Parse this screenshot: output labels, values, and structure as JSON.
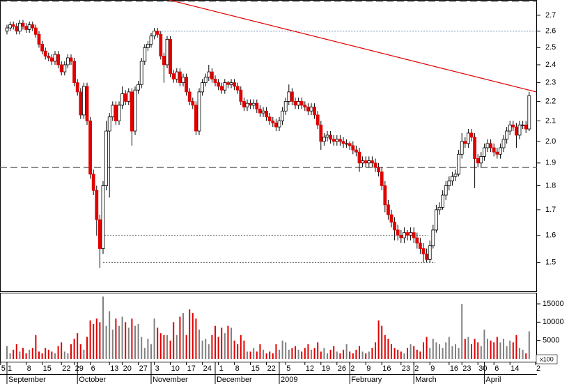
{
  "chart_data": {
    "type": "candlestick",
    "log_y": true,
    "xlim": [
      -2.17,
      165.43
    ],
    "ylim": [
      1.4,
      2.8
    ],
    "yticks": [
      1.5,
      1.6,
      1.7,
      1.8,
      1.9,
      {
        "value": 2,
        "label": "2.0"
      },
      2.1,
      2.2,
      2.3,
      2.4,
      2.5,
      2.6,
      2.7
    ],
    "volume_ylim": [
      -950,
      17850
    ],
    "volume_ticks": [
      5000,
      10000,
      15000
    ],
    "volume_multiplier_label": "x100",
    "up_color": "#ffffff",
    "down_color": "#e00000",
    "edge_color": "#000000",
    "volume_up_color": "#808080",
    "volume_down_color": "#e00000",
    "xticks": [
      {
        "value": -2,
        "label": "5"
      },
      {
        "value": 0,
        "label": "1"
      },
      {
        "value": 6,
        "label": "8"
      },
      {
        "value": 11,
        "label": "15"
      },
      {
        "value": 17,
        "label": "22"
      },
      {
        "value": 21,
        "label": "29"
      },
      {
        "value": 26,
        "label": "6"
      },
      {
        "value": 32,
        "label": "13"
      },
      {
        "value": 36,
        "label": "20"
      },
      {
        "value": 41,
        "label": "27"
      },
      {
        "value": 46,
        "label": "3"
      },
      {
        "value": 51,
        "label": "10"
      },
      {
        "value": 56,
        "label": "17"
      },
      {
        "value": 61,
        "label": "24"
      },
      {
        "value": 66,
        "label": "1"
      },
      {
        "value": 71,
        "label": "8"
      },
      {
        "value": 76,
        "label": "15"
      },
      {
        "value": 81,
        "label": "22"
      },
      {
        "value": 87,
        "label": "5"
      },
      {
        "value": 93,
        "label": "12"
      },
      {
        "value": 98,
        "label": "19"
      },
      {
        "value": 103,
        "label": "26"
      },
      {
        "value": 107,
        "label": "2"
      },
      {
        "value": 112,
        "label": "9"
      },
      {
        "value": 117,
        "label": "16"
      },
      {
        "value": 123,
        "label": "23"
      },
      {
        "value": 127,
        "label": "2"
      },
      {
        "value": 132,
        "label": "9"
      },
      {
        "value": 138,
        "label": "16"
      },
      {
        "value": 142,
        "label": "23"
      },
      {
        "value": 147,
        "label": "30"
      },
      {
        "value": 152,
        "label": "6"
      },
      {
        "value": 157,
        "label": "14"
      },
      {
        "value": 165,
        "label": "2"
      }
    ],
    "months": [
      {
        "value": 0,
        "label": "September"
      },
      {
        "value": 22,
        "label": "October"
      },
      {
        "value": 45,
        "label": "November"
      },
      {
        "value": 65,
        "label": "December"
      },
      {
        "value": 85,
        "label": "2009"
      },
      {
        "value": 107,
        "label": "February"
      },
      {
        "value": 127,
        "label": "March"
      },
      {
        "value": 149,
        "label": "April"
      }
    ],
    "open": [
      2.6,
      2.62,
      2.64,
      2.63,
      2.6,
      2.65,
      2.63,
      2.61,
      2.64,
      2.62,
      2.58,
      2.52,
      2.48,
      2.45,
      2.44,
      2.42,
      2.46,
      2.4,
      2.36,
      2.4,
      2.44,
      2.42,
      2.3,
      2.25,
      2.13,
      2.28,
      2.1,
      1.85,
      1.78,
      1.66,
      1.55,
      1.8,
      2.05,
      2.12,
      2.18,
      2.1,
      2.18,
      2.24,
      2.2,
      2.25,
      2.05,
      2.26,
      2.29,
      2.42,
      2.5,
      2.52,
      2.57,
      2.6,
      2.58,
      2.45,
      2.4,
      2.55,
      2.35,
      2.32,
      2.36,
      2.3,
      2.33,
      2.25,
      2.2,
      2.18,
      2.05,
      2.25,
      2.3,
      2.33,
      2.36,
      2.32,
      2.3,
      2.28,
      2.26,
      2.3,
      2.29,
      2.3,
      2.28,
      2.26,
      2.2,
      2.17,
      2.19,
      2.18,
      2.19,
      2.16,
      2.14,
      2.15,
      2.12,
      2.1,
      2.09,
      2.07,
      2.1,
      2.15,
      2.2,
      2.25,
      2.2,
      2.18,
      2.2,
      2.18,
      2.17,
      2.15,
      2.17,
      2.13,
      2.08,
      2.0,
      2.02,
      2.03,
      2.01,
      2.0,
      2.01,
      2.0,
      1.99,
      1.99,
      1.98,
      1.96,
      1.95,
      1.9,
      1.91,
      1.9,
      1.91,
      1.9,
      1.88,
      1.86,
      1.8,
      1.72,
      1.68,
      1.65,
      1.62,
      1.6,
      1.59,
      1.61,
      1.6,
      1.61,
      1.59,
      1.57,
      1.55,
      1.53,
      1.51,
      1.56,
      1.62,
      1.7,
      1.71,
      1.76,
      1.8,
      1.82,
      1.84,
      1.85,
      1.94,
      2.0,
      1.99,
      2.04,
      2.02,
      1.92,
      1.9,
      1.93,
      1.97,
      1.99,
      1.97,
      1.95,
      1.94,
      1.97,
      2.01,
      2.05,
      2.08,
      2.07,
      2.03,
      2.08,
      2.08,
      2.06
    ],
    "high": [
      2.64,
      2.66,
      2.66,
      2.65,
      2.67,
      2.67,
      2.65,
      2.66,
      2.66,
      2.64,
      2.6,
      2.54,
      2.5,
      2.47,
      2.46,
      2.48,
      2.48,
      2.42,
      2.42,
      2.46,
      2.46,
      2.44,
      2.32,
      2.27,
      2.3,
      2.3,
      2.12,
      1.87,
      1.8,
      1.68,
      1.82,
      2.1,
      2.14,
      2.2,
      2.2,
      2.2,
      2.28,
      2.26,
      2.27,
      2.27,
      2.28,
      2.31,
      2.44,
      2.52,
      2.54,
      2.59,
      2.62,
      2.62,
      2.6,
      2.47,
      2.57,
      2.57,
      2.37,
      2.38,
      2.38,
      2.35,
      2.35,
      2.27,
      2.22,
      2.2,
      2.27,
      2.32,
      2.35,
      2.4,
      2.38,
      2.34,
      2.32,
      2.3,
      2.32,
      2.31,
      2.32,
      2.32,
      2.3,
      2.28,
      2.22,
      2.21,
      2.21,
      2.21,
      2.21,
      2.18,
      2.17,
      2.17,
      2.14,
      2.12,
      2.11,
      2.12,
      2.17,
      2.22,
      2.29,
      2.27,
      2.22,
      2.22,
      2.22,
      2.2,
      2.19,
      2.19,
      2.19,
      2.15,
      2.1,
      2.04,
      2.05,
      2.05,
      2.03,
      2.03,
      2.03,
      2.02,
      2.01,
      2.0,
      2.0,
      1.98,
      1.97,
      1.93,
      1.93,
      1.93,
      1.93,
      1.92,
      1.9,
      1.88,
      1.82,
      1.74,
      1.7,
      1.67,
      1.64,
      1.62,
      1.63,
      1.62,
      1.63,
      1.63,
      1.61,
      1.59,
      1.57,
      1.55,
      1.58,
      1.64,
      1.72,
      1.73,
      1.78,
      1.82,
      1.84,
      1.86,
      1.87,
      1.96,
      2.04,
      2.02,
      2.06,
      2.06,
      2.04,
      1.94,
      1.95,
      1.99,
      2.01,
      2.01,
      1.99,
      1.97,
      1.99,
      2.03,
      2.07,
      2.1,
      2.1,
      2.09,
      2.1,
      2.1,
      2.1,
      2.25
    ],
    "low": [
      2.58,
      2.6,
      2.61,
      2.58,
      2.58,
      2.61,
      2.59,
      2.59,
      2.6,
      2.56,
      2.5,
      2.46,
      2.43,
      2.42,
      2.4,
      2.4,
      2.38,
      2.34,
      2.34,
      2.38,
      2.4,
      2.28,
      2.23,
      2.11,
      2.11,
      2.08,
      1.83,
      1.76,
      1.6,
      1.48,
      1.53,
      1.78,
      1.75,
      2.1,
      2.08,
      2.08,
      2.16,
      2.18,
      2.18,
      1.98,
      2.03,
      2.24,
      2.27,
      2.4,
      2.48,
      2.5,
      2.55,
      2.56,
      2.43,
      2.3,
      2.38,
      2.33,
      2.3,
      2.3,
      2.28,
      2.28,
      2.23,
      2.18,
      2.16,
      2.03,
      2.03,
      2.23,
      2.28,
      2.31,
      2.3,
      2.28,
      2.26,
      2.24,
      2.24,
      2.27,
      2.27,
      2.26,
      2.24,
      2.18,
      2.15,
      2.15,
      2.16,
      2.16,
      2.14,
      2.12,
      2.12,
      2.1,
      2.08,
      2.07,
      2.05,
      2.05,
      2.08,
      2.13,
      2.18,
      2.18,
      2.16,
      2.16,
      2.16,
      2.15,
      2.13,
      2.13,
      2.11,
      2.06,
      1.96,
      1.98,
      2.0,
      1.99,
      1.98,
      1.98,
      1.98,
      1.97,
      1.97,
      1.96,
      1.94,
      1.93,
      1.86,
      1.88,
      1.88,
      1.88,
      1.88,
      1.86,
      1.84,
      1.78,
      1.69,
      1.66,
      1.63,
      1.58,
      1.58,
      1.57,
      1.57,
      1.58,
      1.58,
      1.57,
      1.55,
      1.53,
      1.5,
      1.5,
      1.5,
      1.55,
      1.61,
      1.68,
      1.7,
      1.74,
      1.78,
      1.8,
      1.82,
      1.84,
      1.92,
      1.97,
      1.97,
      2.0,
      1.79,
      1.88,
      1.88,
      1.91,
      1.95,
      1.95,
      1.93,
      1.92,
      1.92,
      1.95,
      1.99,
      2.03,
      2.05,
      1.97,
      2.01,
      2.06,
      2.04,
      2.05
    ],
    "close": [
      2.62,
      2.64,
      2.63,
      2.6,
      2.65,
      2.63,
      2.61,
      2.64,
      2.62,
      2.58,
      2.52,
      2.48,
      2.45,
      2.44,
      2.42,
      2.46,
      2.4,
      2.36,
      2.4,
      2.44,
      2.42,
      2.3,
      2.25,
      2.13,
      2.28,
      2.1,
      1.85,
      1.78,
      1.66,
      1.55,
      1.8,
      2.05,
      2.12,
      2.18,
      2.1,
      2.18,
      2.24,
      2.2,
      2.25,
      2.05,
      2.26,
      2.29,
      2.42,
      2.5,
      2.52,
      2.57,
      2.6,
      2.58,
      2.45,
      2.4,
      2.55,
      2.35,
      2.32,
      2.36,
      2.3,
      2.33,
      2.25,
      2.2,
      2.18,
      2.05,
      2.25,
      2.3,
      2.33,
      2.36,
      2.32,
      2.3,
      2.28,
      2.26,
      2.3,
      2.29,
      2.3,
      2.28,
      2.26,
      2.2,
      2.17,
      2.19,
      2.18,
      2.19,
      2.16,
      2.14,
      2.15,
      2.12,
      2.1,
      2.09,
      2.07,
      2.1,
      2.15,
      2.2,
      2.25,
      2.2,
      2.18,
      2.2,
      2.18,
      2.17,
      2.15,
      2.17,
      2.13,
      2.08,
      2.0,
      2.02,
      2.03,
      2.01,
      2.0,
      2.01,
      2.0,
      1.99,
      1.99,
      1.98,
      1.96,
      1.95,
      1.9,
      1.91,
      1.9,
      1.91,
      1.9,
      1.88,
      1.86,
      1.8,
      1.72,
      1.68,
      1.65,
      1.62,
      1.6,
      1.59,
      1.61,
      1.6,
      1.61,
      1.59,
      1.57,
      1.55,
      1.53,
      1.51,
      1.56,
      1.62,
      1.7,
      1.71,
      1.76,
      1.8,
      1.82,
      1.84,
      1.85,
      1.94,
      2.0,
      1.99,
      2.04,
      2.02,
      1.92,
      1.9,
      1.93,
      1.97,
      1.99,
      1.97,
      1.95,
      1.94,
      1.97,
      2.01,
      2.05,
      2.08,
      2.07,
      2.03,
      2.08,
      2.08,
      2.06,
      2.23
    ],
    "volume": [
      3500,
      1500,
      2500,
      4000,
      2000,
      3000,
      1500,
      2500,
      3000,
      6500,
      2000,
      1500,
      3000,
      2500,
      2000,
      1500,
      3500,
      4500,
      2000,
      1500,
      4000,
      5500,
      7000,
      4000,
      2500,
      6000,
      10500,
      9500,
      11000,
      10000,
      17000,
      9000,
      13000,
      8000,
      11000,
      9000,
      11500,
      10000,
      8500,
      11000,
      9000,
      9500,
      6000,
      3000,
      5500,
      4000,
      11000,
      8500,
      7000,
      6500,
      6500,
      5000,
      10000,
      6500,
      11500,
      12500,
      6500,
      13500,
      12500,
      11000,
      8000,
      5000,
      5500,
      4000,
      6500,
      9000,
      6000,
      8500,
      7000,
      9000,
      8500,
      5000,
      4000,
      6500,
      5000,
      2000,
      2000,
      3000,
      2000,
      4000,
      2500,
      1500,
      2000,
      1500,
      4000,
      2500,
      5000,
      4500,
      2500,
      3000,
      3500,
      2500,
      2000,
      3000,
      4000,
      2500,
      3000,
      4500,
      2000,
      3000,
      1500,
      2500,
      3500,
      2000,
      1500,
      2500,
      4000,
      2000,
      1500,
      2500,
      3500,
      2000,
      1500,
      2000,
      3000,
      4500,
      10500,
      9000,
      6500,
      5500,
      4000,
      3000,
      2500,
      2000,
      1500,
      3000,
      4000,
      3500,
      2500,
      2000,
      4500,
      6000,
      3000,
      5500,
      4500,
      4000,
      3000,
      4500,
      6000,
      3500,
      4000,
      3000,
      15000,
      5500,
      6000,
      4000,
      5500,
      4500,
      3500,
      8000,
      5500,
      5000,
      4500,
      6000,
      4500,
      5500,
      3500,
      5000,
      4500,
      6500,
      3000,
      2500,
      1500,
      7500
    ],
    "horizontal_lines": [
      {
        "value": 2.79,
        "style": "dashed",
        "color": "#555555",
        "from": -2.17,
        "to": 165.43
      },
      {
        "value": 1.88,
        "style": "dashed",
        "color": "#555555",
        "from": -2.17,
        "to": 165.43
      },
      {
        "value": 2.6,
        "style": "dotted",
        "color": "#6a8ab5",
        "from": 45.7,
        "to": 165.43
      },
      {
        "value": 1.6,
        "style": "dotted",
        "color": "#555555",
        "from": 27.8,
        "to": 131.5
      },
      {
        "value": 1.5,
        "style": "dotted",
        "color": "#555555",
        "from": 30,
        "to": 133.7
      }
    ],
    "trendline": {
      "color": "#e00000",
      "start": [
        50.7,
        2.8
      ],
      "end": [
        165.2,
        2.25
      ]
    }
  }
}
